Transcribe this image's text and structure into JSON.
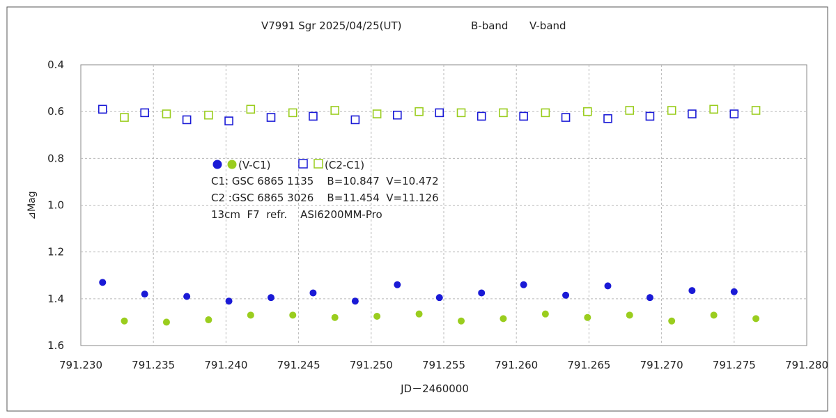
{
  "chart_data": {
    "type": "scatter",
    "title": "V7991 Sgr   2025/04/25(UT)",
    "legend_top": [
      {
        "label": "B-band",
        "color": "#1a1ad6"
      },
      {
        "label": "V-band",
        "color": "#9acd1e"
      }
    ],
    "xlabel": "JD－2460000",
    "ylabel": "⊿Mag",
    "xlim": [
      791.23,
      791.28
    ],
    "ylim": [
      0.4,
      1.6
    ],
    "y_inverted": true,
    "x_ticks": [
      "791.230",
      "791.235",
      "791.240",
      "791.245",
      "791.250",
      "791.255",
      "791.260",
      "791.265",
      "791.270",
      "791.275",
      "791.280"
    ],
    "y_ticks": [
      "0.4",
      "0.6",
      "0.8",
      "1.0",
      "1.2",
      "1.4",
      "1.6"
    ],
    "grid": true,
    "colors": {
      "B": "#1a1ad6",
      "V": "#9acd1e",
      "grid": "#b8b8b8"
    },
    "series": [
      {
        "name": "B (V-C1)",
        "marker": "filled-circle",
        "band": "B",
        "x": [
          791.2315,
          791.2344,
          791.2373,
          791.2402,
          791.2431,
          791.246,
          791.2489,
          791.2518,
          791.2547,
          791.2576,
          791.2605,
          791.2634,
          791.2663,
          791.2692,
          791.2721,
          791.275
        ],
        "y": [
          1.33,
          1.38,
          1.39,
          1.41,
          1.395,
          1.375,
          1.41,
          1.34,
          1.395,
          1.375,
          1.34,
          1.385,
          1.345,
          1.395,
          1.365,
          1.37
        ]
      },
      {
        "name": "V (V-C1)",
        "marker": "filled-circle",
        "band": "V",
        "x": [
          791.233,
          791.2359,
          791.2388,
          791.2417,
          791.2446,
          791.2475,
          791.2504,
          791.2533,
          791.2562,
          791.2591,
          791.262,
          791.2649,
          791.2678,
          791.2707,
          791.2736,
          791.2765
        ],
        "y": [
          1.495,
          1.5,
          1.49,
          1.47,
          1.47,
          1.48,
          1.475,
          1.465,
          1.495,
          1.485,
          1.465,
          1.48,
          1.47,
          1.495,
          1.47,
          1.485
        ]
      },
      {
        "name": "B (C2-C1)",
        "marker": "open-square",
        "band": "B",
        "x": [
          791.2315,
          791.2344,
          791.2373,
          791.2402,
          791.2431,
          791.246,
          791.2489,
          791.2518,
          791.2547,
          791.2576,
          791.2605,
          791.2634,
          791.2663,
          791.2692,
          791.2721,
          791.275
        ],
        "y": [
          0.59,
          0.605,
          0.635,
          0.64,
          0.625,
          0.62,
          0.635,
          0.615,
          0.605,
          0.62,
          0.62,
          0.625,
          0.63,
          0.62,
          0.61,
          0.61
        ]
      },
      {
        "name": "V (C2-C1)",
        "marker": "open-square",
        "band": "V",
        "x": [
          791.233,
          791.2359,
          791.2388,
          791.2417,
          791.2446,
          791.2475,
          791.2504,
          791.2533,
          791.2562,
          791.2591,
          791.262,
          791.2649,
          791.2678,
          791.2707,
          791.2736,
          791.2765
        ],
        "y": [
          0.625,
          0.61,
          0.615,
          0.59,
          0.605,
          0.595,
          0.61,
          0.6,
          0.605,
          0.605,
          0.605,
          0.6,
          0.595,
          0.595,
          0.59,
          0.595
        ]
      }
    ],
    "annotation": {
      "legend_filled": "(V-C1)",
      "legend_open": "(C2-C1)",
      "lines": [
        "C1: GSC 6865 1135    B=10.847  V=10.472",
        "C2 :GSC 6865 3026    B=11.454  V=11.126",
        "13cm  F7  refr.    ASI6200MM-Pro"
      ]
    }
  }
}
